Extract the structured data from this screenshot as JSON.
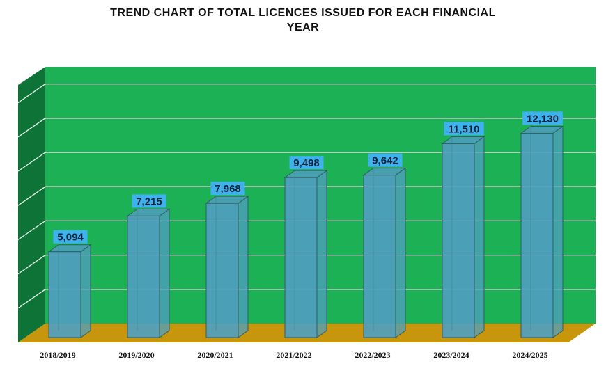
{
  "chart_data": {
    "type": "bar",
    "title_lines": [
      "TREND CHART OF TOTAL LICENCES ISSUED FOR EACH FINANCIAL",
      "YEAR"
    ],
    "categories": [
      "2018/2019",
      "2019/2020",
      "2020/2021",
      "2021/2022",
      "2022/2023",
      "2023/2024",
      "2024/2025"
    ],
    "values": [
      5094,
      7215,
      7968,
      9498,
      9642,
      11510,
      12130
    ],
    "data_labels": [
      "5,094",
      "7,215",
      "7,968",
      "9,498",
      "9,642",
      "11,510",
      "12,130"
    ],
    "xlabel": "",
    "ylabel": "",
    "ylim": [
      0,
      15000
    ],
    "grid": true,
    "legend": "none"
  },
  "colors": {
    "back_wall": "#1cb155",
    "side_wall": "#0e7337",
    "floor": "#c8960c",
    "bar_front": "#4f9ec0",
    "label_bg": "#3fb2ee",
    "gridline": "#e8f5ec"
  }
}
